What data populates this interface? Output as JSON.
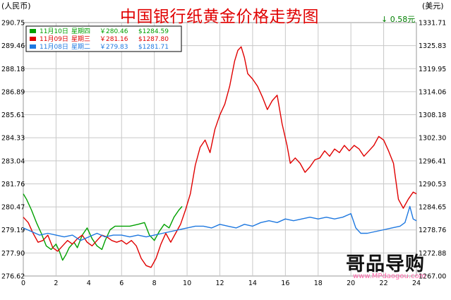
{
  "chart_data": {
    "type": "line",
    "title": "中国银行纸黄金价格走势图",
    "left_unit": "(人民币)",
    "right_unit": "(美元)",
    "change_text": "0.58元",
    "change_direction": "down",
    "colors": {
      "day1": "#00a000",
      "day2": "#e00000",
      "day3": "#1e78e0",
      "grid": "#c8c8c8"
    },
    "xlim": [
      0,
      24
    ],
    "x_ticks": [
      "0",
      "2",
      "4",
      "6",
      "8",
      "10",
      "12",
      "14",
      "16",
      "18",
      "20",
      "22",
      "24"
    ],
    "ylim": [
      276.62,
      290.75
    ],
    "y_ticks_left": [
      "290.75",
      "289.46",
      "288.18",
      "286.89",
      "285.61",
      "284.33",
      "283.04",
      "281.76",
      "280.47",
      "279.19",
      "277.90",
      "276.62"
    ],
    "y_ticks_right": [
      "1331.71",
      "1325.83",
      "1319.95",
      "1314.06",
      "1308.18",
      "1302.30",
      "1296.41",
      "1290.53",
      "1284.65",
      "1278.76",
      "1272.88",
      "1267.00"
    ],
    "legend": [
      {
        "date": "11月10日",
        "weekday": "星期四",
        "cny": "￥280.46",
        "usd": "$1284.59"
      },
      {
        "date": "11月09日",
        "weekday": "星期三",
        "cny": "￥281.16",
        "usd": "$1287.80"
      },
      {
        "date": "11月08日",
        "weekday": "星期二",
        "cny": "￥279.83",
        "usd": "$1281.71"
      }
    ],
    "series": [
      {
        "points": [
          [
            0,
            281.2
          ],
          [
            0.2,
            280.9
          ],
          [
            0.5,
            280.3
          ],
          [
            0.8,
            279.6
          ],
          [
            1.1,
            279.0
          ],
          [
            1.4,
            278.3
          ],
          [
            1.7,
            278.1
          ],
          [
            2.0,
            278.4
          ],
          [
            2.2,
            278.0
          ],
          [
            2.4,
            277.5
          ],
          [
            2.6,
            277.8
          ],
          [
            2.8,
            278.2
          ],
          [
            3.1,
            278.5
          ],
          [
            3.3,
            278.2
          ],
          [
            3.6,
            278.9
          ],
          [
            3.9,
            279.3
          ],
          [
            4.2,
            278.7
          ],
          [
            4.5,
            278.3
          ],
          [
            4.8,
            278.1
          ],
          [
            5.0,
            278.6
          ],
          [
            5.3,
            279.2
          ],
          [
            5.6,
            279.4
          ],
          [
            6.0,
            279.4
          ],
          [
            6.5,
            279.4
          ],
          [
            7.0,
            279.5
          ],
          [
            7.4,
            279.6
          ],
          [
            7.7,
            278.9
          ],
          [
            8.0,
            278.6
          ],
          [
            8.3,
            279.1
          ],
          [
            8.6,
            279.5
          ],
          [
            8.9,
            279.3
          ],
          [
            9.2,
            279.9
          ],
          [
            9.5,
            280.3
          ],
          [
            9.7,
            280.5
          ]
        ]
      },
      {
        "points": [
          [
            0,
            279.9
          ],
          [
            0.3,
            279.6
          ],
          [
            0.6,
            279.0
          ],
          [
            0.9,
            278.5
          ],
          [
            1.2,
            278.6
          ],
          [
            1.5,
            278.9
          ],
          [
            1.8,
            278.2
          ],
          [
            2.1,
            278.0
          ],
          [
            2.4,
            278.3
          ],
          [
            2.7,
            278.6
          ],
          [
            3.0,
            278.4
          ],
          [
            3.3,
            278.7
          ],
          [
            3.6,
            278.9
          ],
          [
            3.9,
            278.5
          ],
          [
            4.2,
            278.3
          ],
          [
            4.5,
            278.6
          ],
          [
            4.8,
            278.9
          ],
          [
            5.1,
            278.8
          ],
          [
            5.4,
            278.6
          ],
          [
            5.7,
            278.5
          ],
          [
            6.0,
            278.6
          ],
          [
            6.3,
            278.4
          ],
          [
            6.6,
            278.6
          ],
          [
            6.9,
            278.3
          ],
          [
            7.2,
            277.6
          ],
          [
            7.5,
            277.2
          ],
          [
            7.8,
            277.1
          ],
          [
            8.1,
            277.6
          ],
          [
            8.4,
            278.4
          ],
          [
            8.7,
            279.0
          ],
          [
            9.0,
            278.5
          ],
          [
            9.3,
            279.0
          ],
          [
            9.6,
            279.5
          ],
          [
            9.9,
            280.3
          ],
          [
            10.2,
            281.2
          ],
          [
            10.5,
            282.8
          ],
          [
            10.8,
            283.8
          ],
          [
            11.1,
            284.2
          ],
          [
            11.4,
            283.5
          ],
          [
            11.7,
            284.8
          ],
          [
            12.0,
            285.6
          ],
          [
            12.3,
            286.2
          ],
          [
            12.6,
            287.2
          ],
          [
            12.9,
            288.6
          ],
          [
            13.1,
            289.2
          ],
          [
            13.3,
            289.4
          ],
          [
            13.5,
            288.8
          ],
          [
            13.7,
            287.9
          ],
          [
            14.0,
            287.6
          ],
          [
            14.3,
            287.2
          ],
          [
            14.6,
            286.6
          ],
          [
            14.9,
            285.9
          ],
          [
            15.2,
            286.4
          ],
          [
            15.5,
            286.7
          ],
          [
            15.8,
            285.1
          ],
          [
            16.1,
            283.9
          ],
          [
            16.3,
            282.9
          ],
          [
            16.6,
            283.2
          ],
          [
            16.9,
            282.9
          ],
          [
            17.2,
            282.4
          ],
          [
            17.5,
            282.7
          ],
          [
            17.8,
            283.1
          ],
          [
            18.1,
            283.2
          ],
          [
            18.4,
            283.6
          ],
          [
            18.7,
            283.3
          ],
          [
            19.0,
            283.7
          ],
          [
            19.3,
            283.5
          ],
          [
            19.6,
            283.9
          ],
          [
            19.9,
            283.6
          ],
          [
            20.2,
            283.9
          ],
          [
            20.5,
            283.7
          ],
          [
            20.8,
            283.3
          ],
          [
            21.1,
            283.6
          ],
          [
            21.4,
            283.9
          ],
          [
            21.7,
            284.4
          ],
          [
            22.0,
            284.2
          ],
          [
            22.3,
            283.6
          ],
          [
            22.6,
            282.9
          ],
          [
            22.9,
            280.9
          ],
          [
            23.2,
            280.4
          ],
          [
            23.5,
            280.9
          ],
          [
            23.8,
            281.3
          ],
          [
            24.0,
            281.2
          ]
        ]
      },
      {
        "points": [
          [
            0,
            279.3
          ],
          [
            0.5,
            279.1
          ],
          [
            1.0,
            278.9
          ],
          [
            1.5,
            279.0
          ],
          [
            2.0,
            278.9
          ],
          [
            2.5,
            278.8
          ],
          [
            3.0,
            278.9
          ],
          [
            3.5,
            278.6
          ],
          [
            4.0,
            278.8
          ],
          [
            4.5,
            279.0
          ],
          [
            5.0,
            278.8
          ],
          [
            5.5,
            278.9
          ],
          [
            6.0,
            278.9
          ],
          [
            6.5,
            278.8
          ],
          [
            7.0,
            278.9
          ],
          [
            7.5,
            278.8
          ],
          [
            8.0,
            278.9
          ],
          [
            8.5,
            279.0
          ],
          [
            9.0,
            279.1
          ],
          [
            9.5,
            279.2
          ],
          [
            10.0,
            279.3
          ],
          [
            10.5,
            279.4
          ],
          [
            11.0,
            279.4
          ],
          [
            11.5,
            279.3
          ],
          [
            12.0,
            279.5
          ],
          [
            12.5,
            279.4
          ],
          [
            13.0,
            279.3
          ],
          [
            13.5,
            279.5
          ],
          [
            14.0,
            279.4
          ],
          [
            14.5,
            279.6
          ],
          [
            15.0,
            279.7
          ],
          [
            15.5,
            279.6
          ],
          [
            16.0,
            279.8
          ],
          [
            16.5,
            279.7
          ],
          [
            17.0,
            279.8
          ],
          [
            17.5,
            279.9
          ],
          [
            18.0,
            279.8
          ],
          [
            18.5,
            279.9
          ],
          [
            19.0,
            279.8
          ],
          [
            19.5,
            279.9
          ],
          [
            20.0,
            280.1
          ],
          [
            20.3,
            279.3
          ],
          [
            20.6,
            279.0
          ],
          [
            21.0,
            279.0
          ],
          [
            21.5,
            279.1
          ],
          [
            22.0,
            279.2
          ],
          [
            22.5,
            279.3
          ],
          [
            23.0,
            279.4
          ],
          [
            23.3,
            279.6
          ],
          [
            23.6,
            280.5
          ],
          [
            23.8,
            279.8
          ],
          [
            24.0,
            279.7
          ]
        ]
      }
    ]
  },
  "watermark": {
    "text_main": "哥品导购",
    "url": "www.MPdaogou.com"
  }
}
